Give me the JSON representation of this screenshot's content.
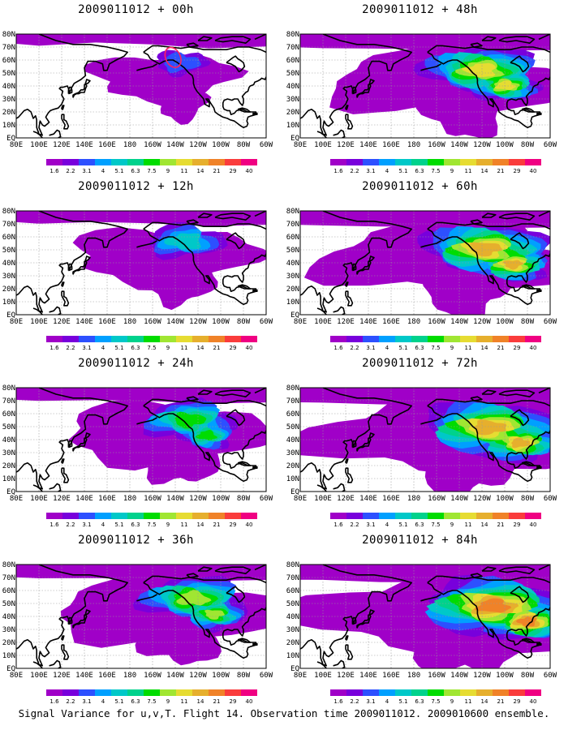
{
  "figure": {
    "caption": "Signal Variance for u,v,T. Flight 14. Observation time 2009011012. 2009010600 ensemble."
  },
  "chart_data": {
    "type": "heatmap",
    "panels": [
      {
        "title": "2009011012 + 00h",
        "lead_hours": 0,
        "intensity": 0.15,
        "extent": 0.25,
        "observation_marker": true
      },
      {
        "title": "2009011012 + 12h",
        "lead_hours": 12,
        "intensity": 0.35,
        "extent": 0.45,
        "observation_marker": false
      },
      {
        "title": "2009011012 + 24h",
        "lead_hours": 24,
        "intensity": 0.5,
        "extent": 0.55,
        "observation_marker": false
      },
      {
        "title": "2009011012 + 36h",
        "lead_hours": 36,
        "intensity": 0.6,
        "extent": 0.65,
        "observation_marker": false
      },
      {
        "title": "2009011012 + 48h",
        "lead_hours": 48,
        "intensity": 0.7,
        "extent": 0.72,
        "observation_marker": false
      },
      {
        "title": "2009011012 + 60h",
        "lead_hours": 60,
        "intensity": 0.78,
        "extent": 0.8,
        "observation_marker": false
      },
      {
        "title": "2009011012 + 72h",
        "lead_hours": 72,
        "intensity": 0.86,
        "extent": 0.88,
        "observation_marker": false
      },
      {
        "title": "2009011012 + 84h",
        "lead_hours": 84,
        "intensity": 0.95,
        "extent": 0.95,
        "observation_marker": false
      }
    ],
    "x_ticks": [
      "80E",
      "100E",
      "120E",
      "140E",
      "160E",
      "180",
      "160W",
      "140W",
      "120W",
      "100W",
      "80W",
      "60W"
    ],
    "y_ticks": [
      "EQ",
      "10N",
      "20N",
      "30N",
      "40N",
      "50N",
      "60N",
      "70N",
      "80N"
    ],
    "lon_range": [
      80,
      300
    ],
    "lat_range": [
      0,
      80
    ],
    "grid": true,
    "colorbar": {
      "levels": [
        "1.6",
        "2.2",
        "3.1",
        "4",
        "5.1",
        "6.3",
        "7.5",
        "9",
        "11",
        "14",
        "21",
        "29",
        "40"
      ],
      "colors": [
        "#a000c8",
        "#7800dc",
        "#2d50ff",
        "#00a0ff",
        "#00c8c8",
        "#00d28c",
        "#00dc00",
        "#a0e632",
        "#e6dc32",
        "#e6af2d",
        "#f08228",
        "#fa3c3c",
        "#f00082"
      ]
    }
  }
}
